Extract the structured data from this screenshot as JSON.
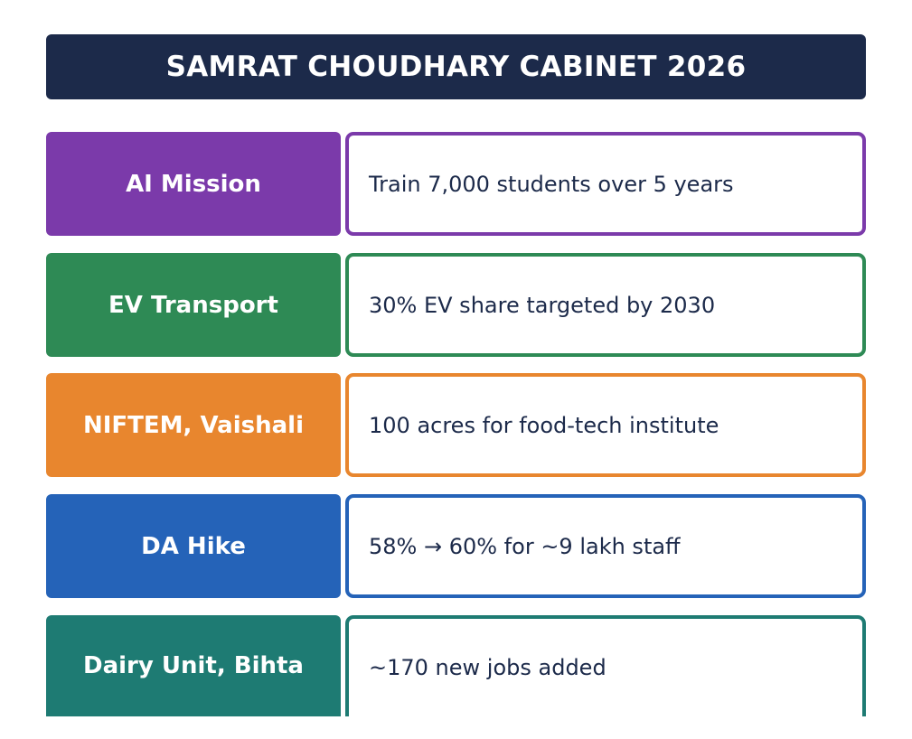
{
  "title": "SAMRAT CHOUDHARY CABINET 2026",
  "items": [
    {
      "label": "AI Mission",
      "detail": "Train 7,000 students over 5 years",
      "color": "#7b3aaa"
    },
    {
      "label": "EV Transport",
      "detail": "30% EV share targeted by 2030",
      "color": "#2e8a55"
    },
    {
      "label": "NIFTEM, Vaishali",
      "detail": "100 acres for food-tech institute",
      "color": "#e8862e"
    },
    {
      "label": "DA Hike",
      "detail": "58% → 60% for ~9 lakh staff",
      "color": "#2563b8"
    },
    {
      "label": "Dairy Unit, Bihta",
      "detail": "~170 new jobs added",
      "color": "#1e7b73"
    }
  ]
}
